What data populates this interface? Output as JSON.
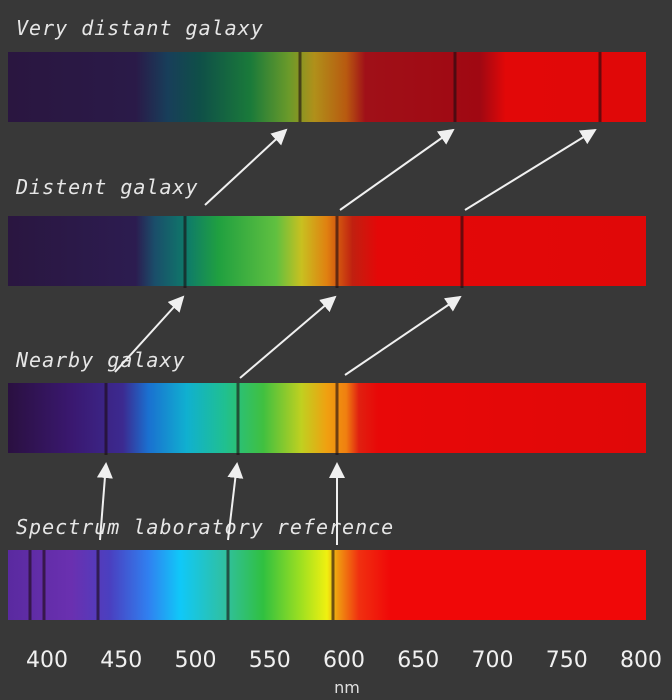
{
  "spectra": [
    {
      "label": "Very distant galaxy"
    },
    {
      "label": "Distent galaxy"
    },
    {
      "label": "Nearby galaxy"
    },
    {
      "label": "Spectrum laboratory reference"
    }
  ],
  "axis": {
    "ticks": [
      400,
      450,
      500,
      550,
      600,
      650,
      700,
      750,
      800
    ],
    "unit": "nm"
  }
}
